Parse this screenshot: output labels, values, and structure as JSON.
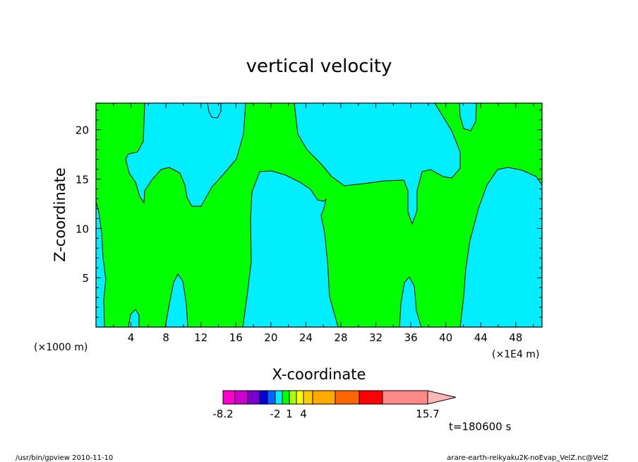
{
  "chart_data": {
    "type": "heatmap",
    "title": "vertical velocity",
    "xlabel": "X-coordinate",
    "ylabel": "Z-coordinate",
    "x_unit_left": "(×1000 m)",
    "x_unit_right": "(×1E4 m)",
    "xlim": [
      0,
      51
    ],
    "ylim": [
      0,
      22.7
    ],
    "x_ticks": [
      4,
      8,
      12,
      16,
      20,
      24,
      28,
      32,
      36,
      40,
      44,
      48
    ],
    "y_ticks": [
      5,
      10,
      15,
      20
    ],
    "colors": {
      "background_level": "#00ff00",
      "downdraft_level": "#00eeff",
      "contour_line": "#000000",
      "frame": "#000000"
    },
    "colorbar": {
      "bins": [
        "#ff00cc",
        "#cc00cc",
        "#7700cc",
        "#0000dd",
        "#0066ff",
        "#00eeff",
        "#00ff00",
        "#aaff00",
        "#ffff00",
        "#ffcc00",
        "#ffaa00",
        "#ff6600",
        "#ff0000",
        "#ff8888"
      ],
      "arrow_color": "#ffb6b6",
      "tick_labels": [
        "-8.2",
        "-2",
        "1",
        "4",
        "15.7"
      ]
    },
    "time_label": "t=180600 s",
    "footer_left": "/usr/bin/gpview  2010-11-10",
    "footer_right": "arare-earth-reikyaku2K-noEvap_VelZ.nc@VelZ"
  }
}
